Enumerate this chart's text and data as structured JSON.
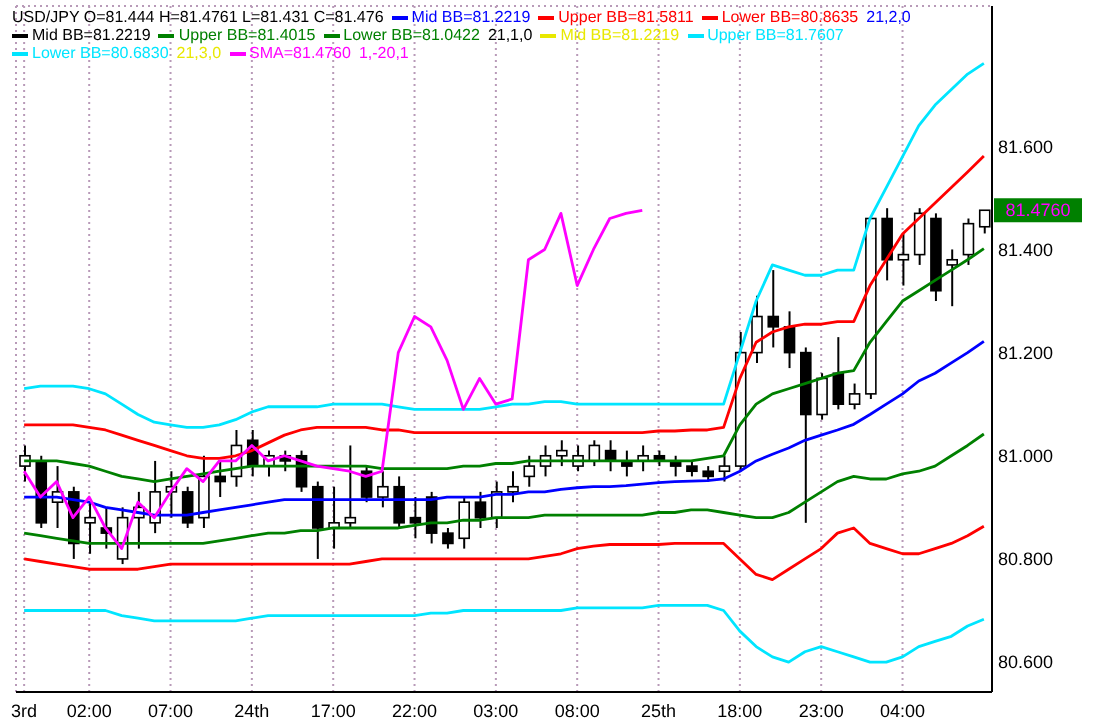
{
  "chart_data": {
    "type": "candlestick",
    "title": "USD/JPY O=81.444 H=81.4761 L=81.431 C=81.476",
    "color": "#000000",
    "categories": [
      "3rd",
      null,
      null,
      null,
      "02:00",
      null,
      null,
      null,
      null,
      "07:00",
      null,
      null,
      null,
      null,
      "24th",
      null,
      null,
      null,
      null,
      "17:00",
      null,
      null,
      null,
      null,
      "22:00",
      null,
      null,
      null,
      null,
      "03:00",
      null,
      null,
      null,
      null,
      "08:00",
      null,
      null,
      null,
      null,
      "25th",
      null,
      null,
      null,
      null,
      "18:00",
      null,
      null,
      null,
      null,
      "23:00",
      null,
      null,
      null,
      null,
      "04:00",
      null,
      null,
      null,
      null,
      null
    ],
    "ohlc": [
      [
        80.98,
        81.02,
        80.95,
        81.0
      ],
      [
        80.99,
        81.0,
        80.86,
        80.87
      ],
      [
        80.91,
        80.98,
        80.86,
        80.93
      ],
      [
        80.93,
        80.94,
        80.8,
        80.83
      ],
      [
        80.87,
        80.91,
        80.81,
        80.88
      ],
      [
        80.86,
        80.9,
        80.82,
        80.85
      ],
      [
        80.8,
        80.9,
        80.79,
        80.88
      ],
      [
        80.88,
        80.93,
        80.82,
        80.9
      ],
      [
        80.87,
        80.99,
        80.85,
        80.93
      ],
      [
        80.93,
        80.97,
        80.88,
        80.94
      ],
      [
        80.93,
        80.94,
        80.86,
        80.87
      ],
      [
        80.88,
        81.0,
        80.86,
        80.96
      ],
      [
        80.96,
        80.99,
        80.92,
        80.95
      ],
      [
        80.96,
        81.05,
        80.94,
        81.02
      ],
      [
        81.03,
        81.05,
        80.96,
        80.98
      ],
      [
        80.98,
        81.01,
        80.96,
        81.0
      ],
      [
        81.0,
        81.01,
        80.97,
        80.99
      ],
      [
        81.0,
        81.01,
        80.93,
        80.94
      ],
      [
        80.94,
        80.95,
        80.8,
        80.86
      ],
      [
        80.86,
        80.94,
        80.82,
        80.87
      ],
      [
        80.87,
        81.02,
        80.86,
        80.88
      ],
      [
        80.97,
        80.98,
        80.91,
        80.92
      ],
      [
        80.92,
        80.97,
        80.9,
        80.94
      ],
      [
        80.94,
        80.96,
        80.86,
        80.87
      ],
      [
        80.88,
        80.92,
        80.84,
        80.87
      ],
      [
        80.92,
        80.93,
        80.83,
        80.85
      ],
      [
        80.85,
        80.86,
        80.82,
        80.83
      ],
      [
        80.84,
        80.92,
        80.82,
        80.91
      ],
      [
        80.91,
        80.93,
        80.86,
        80.88
      ],
      [
        80.88,
        80.95,
        80.86,
        80.93
      ],
      [
        80.93,
        80.97,
        80.91,
        80.94
      ],
      [
        80.96,
        81.0,
        80.94,
        80.98
      ],
      [
        80.98,
        81.02,
        80.96,
        81.0
      ],
      [
        81.0,
        81.03,
        80.98,
        81.01
      ],
      [
        80.98,
        81.02,
        80.97,
        81.0
      ],
      [
        80.99,
        81.03,
        80.98,
        81.02
      ],
      [
        81.01,
        81.03,
        80.97,
        80.99
      ],
      [
        80.99,
        81.01,
        80.96,
        80.98
      ],
      [
        80.99,
        81.02,
        80.97,
        81.0
      ],
      [
        81.0,
        81.01,
        80.98,
        80.99
      ],
      [
        80.99,
        81.0,
        80.96,
        80.98
      ],
      [
        80.98,
        80.99,
        80.96,
        80.97
      ],
      [
        80.97,
        80.98,
        80.95,
        80.96
      ],
      [
        80.97,
        81.0,
        80.95,
        80.98
      ],
      [
        80.98,
        81.24,
        80.97,
        81.2
      ],
      [
        81.2,
        81.31,
        81.18,
        81.27
      ],
      [
        81.27,
        81.36,
        81.21,
        81.25
      ],
      [
        81.25,
        81.28,
        81.17,
        81.2
      ],
      [
        81.2,
        81.21,
        80.87,
        81.08
      ],
      [
        81.08,
        81.16,
        81.07,
        81.15
      ],
      [
        81.16,
        81.23,
        81.09,
        81.1
      ],
      [
        81.1,
        81.14,
        81.09,
        81.12
      ],
      [
        81.12,
        81.46,
        81.11,
        81.46
      ],
      [
        81.46,
        81.48,
        81.34,
        81.38
      ],
      [
        81.38,
        81.43,
        81.33,
        81.39
      ],
      [
        81.39,
        81.48,
        81.37,
        81.47
      ],
      [
        81.46,
        81.47,
        81.3,
        81.32
      ],
      [
        81.37,
        81.4,
        81.29,
        81.38
      ],
      [
        81.39,
        81.46,
        81.37,
        81.45
      ],
      [
        81.444,
        81.4761,
        81.431,
        81.476
      ]
    ],
    "series": [
      {
        "type": "line",
        "name": "Mid BB=81.2219",
        "color": "#0000ff",
        "values": [
          80.92,
          80.92,
          80.92,
          80.915,
          80.91,
          80.9,
          80.895,
          80.89,
          80.885,
          80.885,
          80.885,
          80.89,
          80.895,
          80.9,
          80.905,
          80.91,
          80.915,
          80.915,
          80.915,
          80.915,
          80.915,
          80.915,
          80.915,
          80.915,
          80.915,
          80.915,
          80.92,
          80.92,
          80.92,
          80.925,
          80.925,
          80.93,
          80.93,
          80.935,
          80.938,
          80.94,
          80.94,
          80.942,
          80.945,
          80.948,
          80.95,
          80.951,
          80.952,
          80.955,
          80.97,
          80.99,
          81.003,
          81.015,
          81.03,
          81.04,
          81.05,
          81.061,
          81.08,
          81.1,
          81.12,
          81.145,
          81.16,
          81.18,
          81.2,
          81.2219
        ]
      },
      {
        "type": "line",
        "name": "Upper BB=81.5811",
        "color": "#ff0000",
        "values": [
          81.06,
          81.06,
          81.06,
          81.06,
          81.055,
          81.05,
          81.04,
          81.03,
          81.02,
          81.01,
          81.0,
          80.995,
          80.995,
          81.0,
          81.01,
          81.025,
          81.04,
          81.05,
          81.055,
          81.055,
          81.055,
          81.055,
          81.05,
          81.05,
          81.045,
          81.045,
          81.045,
          81.045,
          81.045,
          81.045,
          81.045,
          81.045,
          81.045,
          81.045,
          81.045,
          81.045,
          81.045,
          81.045,
          81.045,
          81.048,
          81.048,
          81.05,
          81.05,
          81.055,
          81.15,
          81.22,
          81.24,
          81.25,
          81.255,
          81.255,
          81.26,
          81.26,
          81.33,
          81.38,
          81.43,
          81.46,
          81.49,
          81.52,
          81.55,
          81.5811
        ]
      },
      {
        "type": "line",
        "name": "Lower BB=80.8635",
        "color": "#ff0000",
        "values": [
          80.8,
          80.795,
          80.79,
          80.785,
          80.78,
          80.78,
          80.78,
          80.78,
          80.785,
          80.79,
          80.79,
          80.79,
          80.79,
          80.79,
          80.79,
          80.79,
          80.79,
          80.79,
          80.79,
          80.79,
          80.79,
          80.795,
          80.8,
          80.8,
          80.8,
          80.8,
          80.8,
          80.8,
          80.8,
          80.8,
          80.8,
          80.8,
          80.805,
          80.81,
          80.82,
          80.825,
          80.828,
          80.828,
          80.828,
          80.828,
          80.83,
          80.83,
          80.83,
          80.83,
          80.8,
          80.77,
          80.76,
          80.78,
          80.8,
          80.82,
          80.85,
          80.86,
          80.83,
          80.82,
          80.81,
          80.81,
          80.82,
          80.83,
          80.845,
          80.8635
        ]
      },
      {
        "type": "line",
        "name": "Mid BB=81.2219",
        "color": "#000000",
        "values": [
          null,
          null,
          null,
          null,
          null,
          null,
          null,
          null,
          null,
          null,
          null,
          null,
          null,
          null,
          null,
          null,
          null,
          null,
          null,
          null,
          null,
          null,
          null,
          null,
          null,
          null,
          null,
          null,
          null,
          null,
          null,
          null,
          null,
          null,
          null,
          null,
          null,
          null,
          null,
          null,
          null,
          null,
          null,
          null,
          null,
          null,
          null,
          null,
          null,
          null,
          null,
          null,
          null,
          null,
          null,
          null,
          null,
          null,
          null,
          null
        ]
      },
      {
        "type": "line",
        "name": "Upper BB=81.4015",
        "color": "#008000",
        "values": [
          80.99,
          80.99,
          80.99,
          80.985,
          80.98,
          80.97,
          80.96,
          80.955,
          80.95,
          80.955,
          80.96,
          80.965,
          80.97,
          80.975,
          80.98,
          80.98,
          80.98,
          80.98,
          80.98,
          80.98,
          80.98,
          80.98,
          80.975,
          80.975,
          80.975,
          80.975,
          80.975,
          80.98,
          80.98,
          80.985,
          80.985,
          80.99,
          80.99,
          80.99,
          80.99,
          80.99,
          80.99,
          80.99,
          80.99,
          80.99,
          80.99,
          80.99,
          80.995,
          81.0,
          81.06,
          81.1,
          81.12,
          81.13,
          81.14,
          81.15,
          81.16,
          81.165,
          81.22,
          81.26,
          81.3,
          81.32,
          81.34,
          81.36,
          81.38,
          81.4015
        ]
      },
      {
        "type": "line",
        "name": "Lower BB=81.0422",
        "color": "#008000",
        "values": [
          80.85,
          80.845,
          80.84,
          80.835,
          80.83,
          80.83,
          80.83,
          80.83,
          80.83,
          80.83,
          80.83,
          80.83,
          80.835,
          80.84,
          80.845,
          80.85,
          80.85,
          80.855,
          80.855,
          80.86,
          80.86,
          80.86,
          80.86,
          80.86,
          80.865,
          80.87,
          80.87,
          80.875,
          80.875,
          80.88,
          80.88,
          80.88,
          80.885,
          80.885,
          80.885,
          80.885,
          80.885,
          80.885,
          80.885,
          80.89,
          80.89,
          80.895,
          80.895,
          80.89,
          80.885,
          80.88,
          80.88,
          80.89,
          80.91,
          80.93,
          80.95,
          80.96,
          80.955,
          80.955,
          80.965,
          80.97,
          80.98,
          81.0,
          81.02,
          81.0422
        ]
      },
      {
        "type": "line",
        "name": "Mid BB=81.2219",
        "color": "#e8e800",
        "values": [
          null,
          null,
          null,
          null,
          null,
          null,
          null,
          null,
          null,
          null,
          null,
          null,
          null,
          null,
          null,
          null,
          null,
          null,
          null,
          null,
          null,
          null,
          null,
          null,
          null,
          null,
          null,
          null,
          null,
          null,
          null,
          null,
          null,
          null,
          null,
          null,
          null,
          null,
          null,
          null,
          null,
          null,
          null,
          null,
          null,
          null,
          null,
          null,
          null,
          null,
          null,
          null,
          null,
          null,
          null,
          null,
          null,
          null,
          null,
          null
        ]
      },
      {
        "type": "line",
        "name": "Upper BB=81.7607",
        "color": "#00e5ff",
        "values": [
          81.13,
          81.135,
          81.135,
          81.135,
          81.13,
          81.12,
          81.1,
          81.08,
          81.065,
          81.06,
          81.055,
          81.055,
          81.06,
          81.07,
          81.085,
          81.095,
          81.095,
          81.095,
          81.095,
          81.1,
          81.1,
          81.1,
          81.1,
          81.095,
          81.09,
          81.09,
          81.09,
          81.09,
          81.09,
          81.095,
          81.1,
          81.1,
          81.105,
          81.105,
          81.1,
          81.1,
          81.1,
          81.1,
          81.1,
          81.1,
          81.1,
          81.1,
          81.1,
          81.1,
          81.2,
          81.3,
          81.37,
          81.36,
          81.35,
          81.35,
          81.36,
          81.36,
          81.46,
          81.52,
          81.58,
          81.64,
          81.68,
          81.71,
          81.74,
          81.7607
        ]
      },
      {
        "type": "line",
        "name": "Lower BB=80.6830",
        "color": "#00e5ff",
        "values": [
          80.7,
          80.7,
          80.7,
          80.7,
          80.7,
          80.7,
          80.69,
          80.685,
          80.68,
          80.68,
          80.68,
          80.68,
          80.68,
          80.68,
          80.685,
          80.69,
          80.69,
          80.69,
          80.69,
          80.69,
          80.69,
          80.69,
          80.69,
          80.69,
          80.69,
          80.695,
          80.695,
          80.7,
          80.7,
          80.7,
          80.7,
          80.7,
          80.7,
          80.7,
          80.705,
          80.705,
          80.705,
          80.705,
          80.705,
          80.71,
          80.71,
          80.71,
          80.71,
          80.7,
          80.66,
          80.63,
          80.61,
          80.6,
          80.62,
          80.63,
          80.62,
          80.61,
          80.6,
          80.6,
          80.61,
          80.63,
          80.64,
          80.65,
          80.67,
          80.683
        ]
      },
      {
        "type": "line",
        "name": "SMA=81.4760",
        "color": "#ff00ff",
        "values": [
          80.97,
          80.92,
          80.95,
          80.88,
          80.92,
          80.86,
          80.82,
          80.91,
          80.88,
          80.93,
          80.975,
          80.95,
          80.99,
          80.99,
          81.02,
          80.99,
          81.0,
          80.99,
          80.98,
          80.975,
          80.97,
          80.96,
          80.97,
          81.2,
          81.27,
          81.25,
          81.185,
          81.09,
          81.15,
          81.1,
          81.11,
          81.38,
          81.4,
          81.47,
          81.33,
          81.4,
          81.46,
          81.47,
          81.476,
          null,
          null,
          null,
          null,
          null,
          null,
          null,
          null,
          null,
          null,
          null,
          null,
          null,
          null,
          null,
          null,
          null,
          null,
          null,
          null,
          null
        ]
      }
    ],
    "annotations": [
      "21,2,0",
      "21,1,0",
      "21,3,0",
      "1,-20,1",
      "81.4760"
    ],
    "ylim": [
      80.542,
      81.872
    ],
    "yticks": [
      {
        "value": 80.6,
        "label": "80.600"
      },
      {
        "value": 80.8,
        "label": "80.800"
      },
      {
        "value": 81.0,
        "label": "81.000"
      },
      {
        "value": 81.2,
        "label": "81.200"
      },
      {
        "value": 81.4,
        "label": "81.400"
      },
      {
        "value": 81.6,
        "label": "81.600"
      }
    ],
    "grid": true,
    "legend": "top left",
    "marker": "none"
  }
}
